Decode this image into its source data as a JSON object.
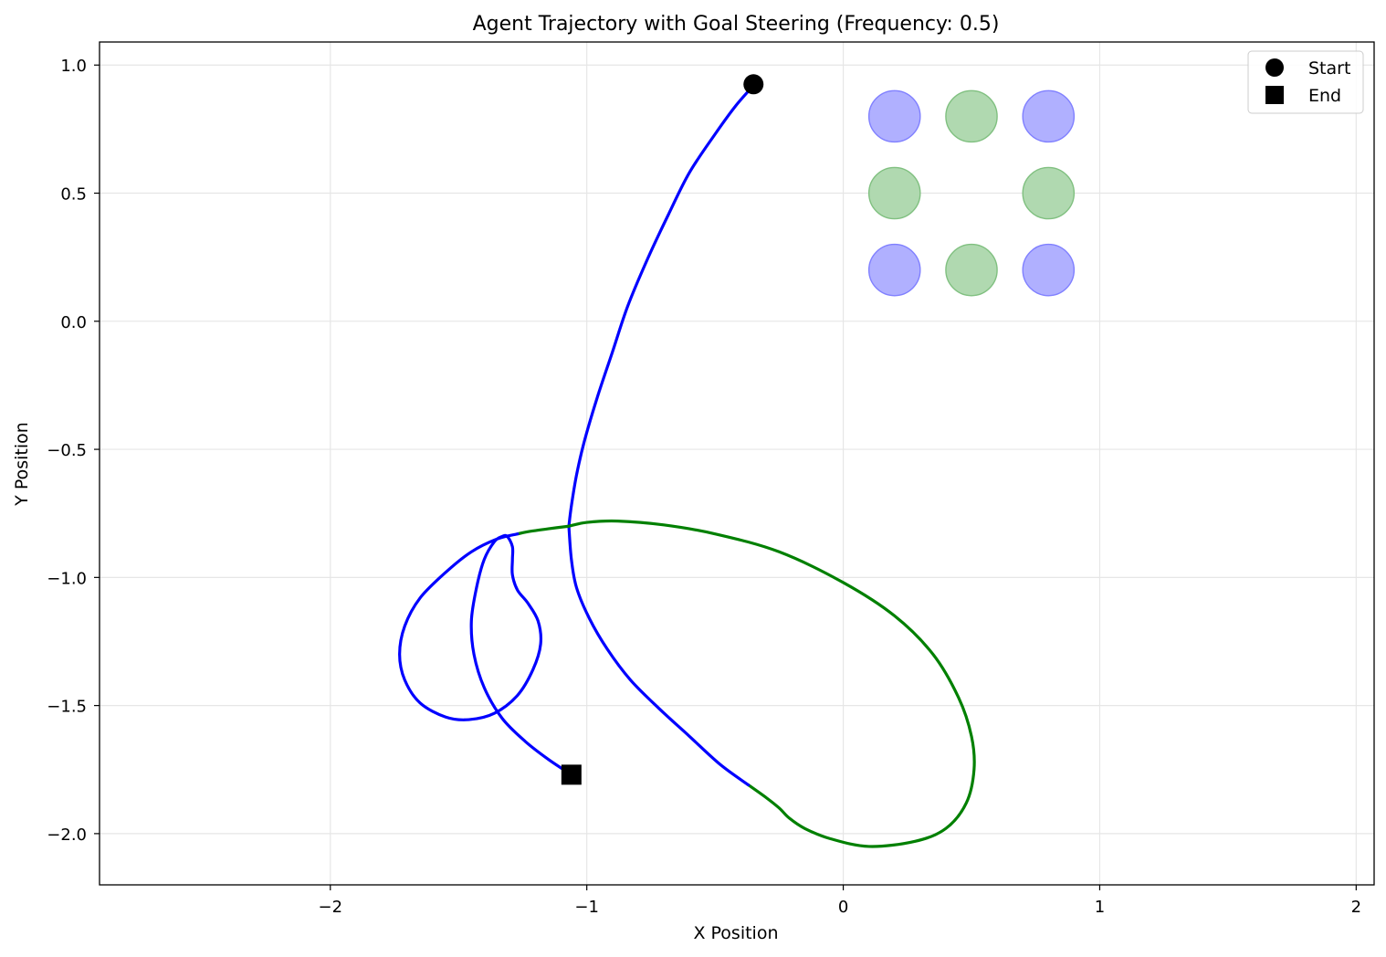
{
  "chart_data": {
    "type": "line",
    "title": "Agent Trajectory with Goal Steering (Frequency: 0.5)",
    "xlabel": "X Position",
    "ylabel": "Y Position",
    "xlim": [
      -2.9,
      2.07
    ],
    "ylim": [
      -2.2,
      1.09
    ],
    "xticks": [
      -2,
      -1,
      0,
      1,
      2
    ],
    "xtick_labels": [
      "−2",
      "−1",
      "0",
      "1",
      "2"
    ],
    "yticks": [
      1.0,
      0.5,
      0.0,
      -0.5,
      -1.0,
      -1.5,
      -2.0
    ],
    "ytick_labels": [
      "1.0",
      "0.5",
      "0.0",
      "−0.5",
      "−1.0",
      "−1.5",
      "−2.0"
    ],
    "grid": true,
    "legend_position": "top-right",
    "legend": [
      {
        "label": "Start",
        "marker": "circle"
      },
      {
        "label": "End",
        "marker": "square"
      }
    ],
    "goals": [
      {
        "x": 0.2,
        "y": 0.8,
        "color": "blue"
      },
      {
        "x": 0.5,
        "y": 0.8,
        "color": "green"
      },
      {
        "x": 0.8,
        "y": 0.8,
        "color": "blue"
      },
      {
        "x": 0.2,
        "y": 0.5,
        "color": "green"
      },
      {
        "x": 0.8,
        "y": 0.5,
        "color": "green"
      },
      {
        "x": 0.2,
        "y": 0.2,
        "color": "blue"
      },
      {
        "x": 0.5,
        "y": 0.2,
        "color": "green"
      },
      {
        "x": 0.8,
        "y": 0.2,
        "color": "blue"
      }
    ],
    "goal_radius": 0.1,
    "colors": {
      "blue": "#0000ff",
      "green": "#008000",
      "goal_blue": "#b0b0ff",
      "goal_green": "#b0d9b0",
      "goal_blue_edge": "#8080ff",
      "goal_green_edge": "#80c080",
      "marker": "#000000",
      "grid": "#e6e6e6"
    },
    "series": [
      {
        "color": "blue",
        "points": [
          [
            -0.35,
            0.92
          ],
          [
            -0.42,
            0.84
          ],
          [
            -0.5,
            0.73
          ],
          [
            -0.6,
            0.58
          ],
          [
            -0.68,
            0.42
          ],
          [
            -0.76,
            0.25
          ],
          [
            -0.84,
            0.06
          ],
          [
            -0.9,
            -0.12
          ],
          [
            -0.96,
            -0.3
          ],
          [
            -1.01,
            -0.47
          ],
          [
            -1.04,
            -0.6
          ],
          [
            -1.06,
            -0.72
          ],
          [
            -1.07,
            -0.8
          ]
        ]
      },
      {
        "color": "green",
        "points": [
          [
            -1.07,
            -0.8
          ],
          [
            -1.0,
            -0.785
          ],
          [
            -0.88,
            -0.78
          ],
          [
            -0.7,
            -0.795
          ],
          [
            -0.5,
            -0.83
          ],
          [
            -0.25,
            -0.9
          ],
          [
            0.0,
            -1.02
          ],
          [
            0.2,
            -1.15
          ],
          [
            0.35,
            -1.3
          ],
          [
            0.45,
            -1.47
          ],
          [
            0.5,
            -1.62
          ],
          [
            0.51,
            -1.75
          ],
          [
            0.48,
            -1.88
          ],
          [
            0.4,
            -1.98
          ],
          [
            0.28,
            -2.03
          ],
          [
            0.1,
            -2.05
          ],
          [
            -0.05,
            -2.02
          ],
          [
            -0.15,
            -1.98
          ],
          [
            -0.21,
            -1.94
          ],
          [
            -0.25,
            -1.9
          ],
          [
            -0.3,
            -1.86
          ],
          [
            -0.37,
            -1.81
          ]
        ]
      },
      {
        "color": "blue",
        "points": [
          [
            -0.37,
            -1.81
          ],
          [
            -0.48,
            -1.73
          ],
          [
            -0.6,
            -1.62
          ],
          [
            -0.72,
            -1.51
          ],
          [
            -0.83,
            -1.4
          ],
          [
            -0.92,
            -1.28
          ],
          [
            -0.99,
            -1.16
          ],
          [
            -1.04,
            -1.04
          ],
          [
            -1.06,
            -0.93
          ],
          [
            -1.07,
            -0.8
          ]
        ]
      },
      {
        "color": "green",
        "points": [
          [
            -1.07,
            -0.8
          ],
          [
            -1.15,
            -0.81
          ],
          [
            -1.22,
            -0.82
          ],
          [
            -1.27,
            -0.83
          ]
        ]
      },
      {
        "color": "blue",
        "points": [
          [
            -1.27,
            -0.83
          ],
          [
            -1.35,
            -0.85
          ],
          [
            -1.45,
            -0.9
          ],
          [
            -1.55,
            -0.98
          ],
          [
            -1.65,
            -1.08
          ],
          [
            -1.71,
            -1.19
          ],
          [
            -1.73,
            -1.3
          ],
          [
            -1.71,
            -1.4
          ],
          [
            -1.65,
            -1.49
          ],
          [
            -1.55,
            -1.545
          ],
          [
            -1.46,
            -1.555
          ],
          [
            -1.36,
            -1.53
          ],
          [
            -1.27,
            -1.46
          ],
          [
            -1.21,
            -1.36
          ],
          [
            -1.18,
            -1.26
          ],
          [
            -1.19,
            -1.17
          ],
          [
            -1.23,
            -1.1
          ],
          [
            -1.27,
            -1.05
          ],
          [
            -1.29,
            -0.99
          ],
          [
            -1.29,
            -0.93
          ],
          [
            -1.29,
            -0.88
          ],
          [
            -1.31,
            -0.84
          ],
          [
            -1.33,
            -0.84
          ],
          [
            -1.36,
            -0.86
          ],
          [
            -1.4,
            -0.93
          ],
          [
            -1.43,
            -1.04
          ],
          [
            -1.45,
            -1.17
          ],
          [
            -1.44,
            -1.3
          ],
          [
            -1.4,
            -1.43
          ],
          [
            -1.33,
            -1.55
          ],
          [
            -1.24,
            -1.64
          ],
          [
            -1.15,
            -1.71
          ],
          [
            -1.06,
            -1.77
          ]
        ]
      }
    ],
    "start": {
      "x": -0.35,
      "y": 0.925
    },
    "end": {
      "x": -1.06,
      "y": -1.77
    }
  }
}
